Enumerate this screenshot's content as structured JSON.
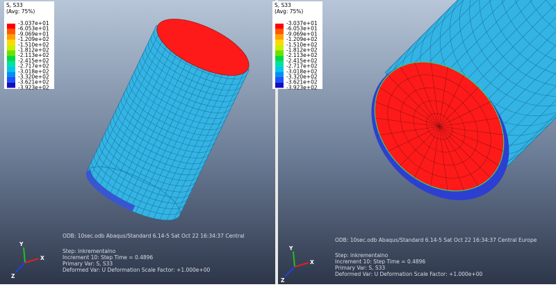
{
  "panels": [
    {
      "legend": {
        "title": "S, S33",
        "subtitle": "(Avg: 75%)",
        "values": [
          "-3.037e+01",
          "-6.053e+01",
          "-9.069e+01",
          "-1.209e+02",
          "-1.510e+02",
          "-1.812e+02",
          "-2.113e+02",
          "-2.415e+02",
          "-2.717e+02",
          "-3.018e+02",
          "-3.320e+02",
          "-3.621e+02",
          "-3.923e+02"
        ]
      },
      "info": {
        "odb": "ODB: 10sec.odb    Abaqus/Standard 6.14-5    Sat Oct 22 16:34:37 Central",
        "step": "Step: inkrementalno",
        "increment": "Increment    10: Step Time =    0.4896",
        "primary": "Primary Var: S, S33",
        "deformed": "Deformed Var: U   Deformation Scale Factor: +1.000e+00"
      },
      "triad": {
        "y": "Y",
        "x": "X",
        "z": "Z"
      }
    },
    {
      "legend": {
        "title": "S, S33",
        "subtitle": "(Avg: 75%)",
        "values": [
          "-3.037e+01",
          "-6.053e+01",
          "-9.069e+01",
          "-1.209e+02",
          "-1.510e+02",
          "-1.812e+02",
          "-2.113e+02",
          "-2.415e+02",
          "-2.717e+02",
          "-3.018e+02",
          "-3.320e+02",
          "-3.621e+02",
          "-3.923e+02"
        ]
      },
      "info": {
        "odb": "ODB: 10sec.odb    Abaqus/Standard 6.14-5    Sat Oct 22 16:34:37 Central Europe",
        "step": "Step: inkrementalno",
        "increment": "Increment    10: Step Time =    0.4896",
        "primary": "Primary Var: S, S33",
        "deformed": "Deformed Var: U   Deformation Scale Factor: +1.000e+00"
      },
      "triad": {
        "y": "Y",
        "x": "X",
        "z": "Z"
      }
    }
  ]
}
